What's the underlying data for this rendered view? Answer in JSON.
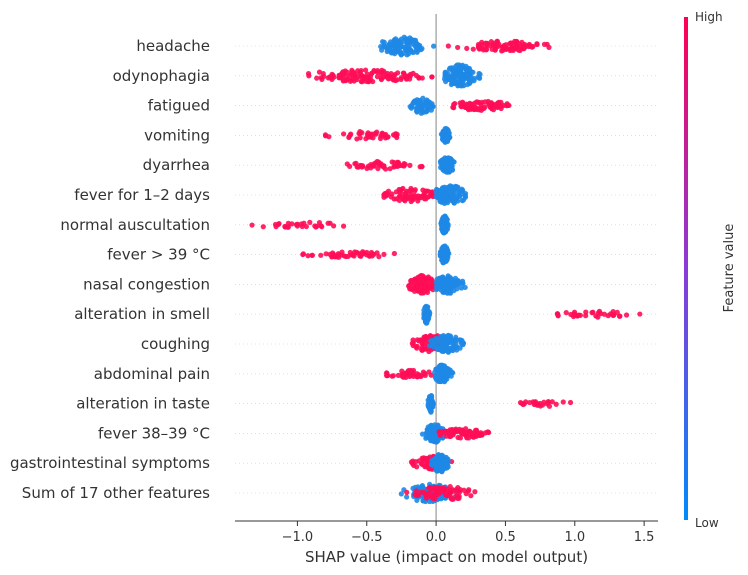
{
  "chart_data": {
    "type": "scatter",
    "subtype": "shap-beeswarm",
    "title": "",
    "xlabel": "SHAP value (impact on model output)",
    "ylabel": "",
    "xlim": [
      -1.45,
      1.6
    ],
    "xticks": [
      -1.0,
      -0.5,
      0.0,
      0.5,
      1.0,
      1.5
    ],
    "xtick_labels": [
      "−1.0",
      "−0.5",
      "0.0",
      "0.5",
      "1.0",
      "1.5"
    ],
    "grid": "horizontal dashed row lines",
    "colorbar": {
      "title": "Feature value",
      "high_label": "High",
      "low_label": "Low",
      "high_color": "#ff0d57",
      "low_color": "#1e88e5"
    },
    "features": [
      {
        "name": "headache",
        "clusters": [
          {
            "color": "low",
            "min": -0.52,
            "max": 0.0,
            "mean": -0.24,
            "spread": 0.08,
            "n": 110,
            "halfwidth": 9
          },
          {
            "color": "high",
            "min": 0.08,
            "max": 0.82,
            "mean": 0.5,
            "spread": 0.16,
            "n": 85,
            "halfwidth": 5
          }
        ]
      },
      {
        "name": "odynophagia",
        "clusters": [
          {
            "color": "high",
            "min": -0.92,
            "max": -0.02,
            "mean": -0.5,
            "spread": 0.22,
            "n": 120,
            "halfwidth": 6
          },
          {
            "color": "low",
            "min": 0.06,
            "max": 0.32,
            "mean": 0.17,
            "spread": 0.06,
            "n": 130,
            "halfwidth": 11
          }
        ]
      },
      {
        "name": "fatigued",
        "clusters": [
          {
            "color": "low",
            "min": -0.22,
            "max": -0.02,
            "mean": -0.1,
            "spread": 0.04,
            "n": 55,
            "halfwidth": 8
          },
          {
            "color": "high",
            "min": 0.12,
            "max": 0.53,
            "mean": 0.33,
            "spread": 0.1,
            "n": 70,
            "halfwidth": 5
          }
        ]
      },
      {
        "name": "vomiting",
        "clusters": [
          {
            "color": "high",
            "min": -0.8,
            "max": -0.28,
            "mean": -0.5,
            "spread": 0.13,
            "n": 45,
            "halfwidth": 4
          },
          {
            "color": "low",
            "min": 0.03,
            "max": 0.1,
            "mean": 0.07,
            "spread": 0.015,
            "n": 90,
            "halfwidth": 7
          }
        ]
      },
      {
        "name": "dyarrhea",
        "clusters": [
          {
            "color": "high",
            "min": -0.65,
            "max": -0.1,
            "mean": -0.37,
            "spread": 0.13,
            "n": 50,
            "halfwidth": 4
          },
          {
            "color": "low",
            "min": 0.03,
            "max": 0.17,
            "mean": 0.08,
            "spread": 0.025,
            "n": 100,
            "halfwidth": 8
          }
        ]
      },
      {
        "name": "fever for 1–2 days",
        "clusters": [
          {
            "color": "high",
            "min": -0.38,
            "max": -0.02,
            "mean": -0.2,
            "spread": 0.09,
            "n": 75,
            "halfwidth": 7
          },
          {
            "color": "low",
            "min": 0.0,
            "max": 0.22,
            "mean": 0.1,
            "spread": 0.06,
            "n": 100,
            "halfwidth": 10
          }
        ]
      },
      {
        "name": "normal auscultation",
        "clusters": [
          {
            "color": "high",
            "min": -1.33,
            "max": -0.62,
            "mean": -1.0,
            "spread": 0.17,
            "n": 30,
            "halfwidth": 3
          },
          {
            "color": "low",
            "min": 0.03,
            "max": 0.09,
            "mean": 0.06,
            "spread": 0.012,
            "n": 130,
            "halfwidth": 9
          }
        ]
      },
      {
        "name": "fever > 39 °C",
        "clusters": [
          {
            "color": "high",
            "min": -0.97,
            "max": -0.22,
            "mean": -0.6,
            "spread": 0.18,
            "n": 50,
            "halfwidth": 3
          },
          {
            "color": "low",
            "min": 0.03,
            "max": 0.1,
            "mean": 0.06,
            "spread": 0.015,
            "n": 130,
            "halfwidth": 9
          }
        ]
      },
      {
        "name": "nasal congestion",
        "clusters": [
          {
            "color": "high",
            "min": -0.2,
            "max": 0.0,
            "mean": -0.1,
            "spread": 0.05,
            "n": 90,
            "halfwidth": 9
          },
          {
            "color": "low",
            "min": 0.0,
            "max": 0.25,
            "mean": 0.09,
            "spread": 0.06,
            "n": 90,
            "halfwidth": 9
          }
        ]
      },
      {
        "name": "alteration in smell",
        "clusters": [
          {
            "color": "low",
            "min": -0.1,
            "max": -0.04,
            "mean": -0.07,
            "spread": 0.01,
            "n": 70,
            "halfwidth": 9
          },
          {
            "color": "high",
            "min": 0.87,
            "max": 1.47,
            "mean": 1.15,
            "spread": 0.15,
            "n": 35,
            "halfwidth": 3
          }
        ]
      },
      {
        "name": "coughing",
        "clusters": [
          {
            "color": "high",
            "min": -0.18,
            "max": 0.15,
            "mean": -0.03,
            "spread": 0.07,
            "n": 80,
            "halfwidth": 9
          },
          {
            "color": "low",
            "min": -0.05,
            "max": 0.2,
            "mean": 0.07,
            "spread": 0.06,
            "n": 90,
            "halfwidth": 9
          }
        ]
      },
      {
        "name": "abdominal pain",
        "clusters": [
          {
            "color": "high",
            "min": -0.36,
            "max": -0.02,
            "mean": -0.2,
            "spread": 0.09,
            "n": 45,
            "halfwidth": 4
          },
          {
            "color": "low",
            "min": -0.01,
            "max": 0.13,
            "mean": 0.04,
            "spread": 0.03,
            "n": 110,
            "halfwidth": 9
          }
        ]
      },
      {
        "name": "alteration in taste",
        "clusters": [
          {
            "color": "low",
            "min": -0.06,
            "max": -0.02,
            "mean": -0.04,
            "spread": 0.008,
            "n": 70,
            "halfwidth": 9
          },
          {
            "color": "high",
            "min": 0.6,
            "max": 1.0,
            "mean": 0.76,
            "spread": 0.1,
            "n": 25,
            "halfwidth": 3
          }
        ]
      },
      {
        "name": "fever 38–39 °C",
        "clusters": [
          {
            "color": "low",
            "min": -0.14,
            "max": 0.06,
            "mean": -0.01,
            "spread": 0.04,
            "n": 90,
            "halfwidth": 9
          },
          {
            "color": "high",
            "min": 0.02,
            "max": 0.38,
            "mean": 0.18,
            "spread": 0.09,
            "n": 70,
            "halfwidth": 5
          }
        ]
      },
      {
        "name": "gastrointestinal symptoms",
        "clusters": [
          {
            "color": "high",
            "min": -0.18,
            "max": 0.15,
            "mean": -0.02,
            "spread": 0.07,
            "n": 55,
            "halfwidth": 7
          },
          {
            "color": "low",
            "min": -0.04,
            "max": 0.1,
            "mean": 0.03,
            "spread": 0.03,
            "n": 90,
            "halfwidth": 9
          }
        ]
      },
      {
        "name": "Sum of 17 other features",
        "clusters": [
          {
            "color": "low",
            "min": -0.32,
            "max": 0.15,
            "mean": -0.05,
            "spread": 0.09,
            "n": 100,
            "halfwidth": 9
          },
          {
            "color": "high",
            "min": -0.35,
            "max": 0.28,
            "mean": 0.05,
            "spread": 0.1,
            "n": 70,
            "halfwidth": 7
          }
        ]
      }
    ]
  }
}
